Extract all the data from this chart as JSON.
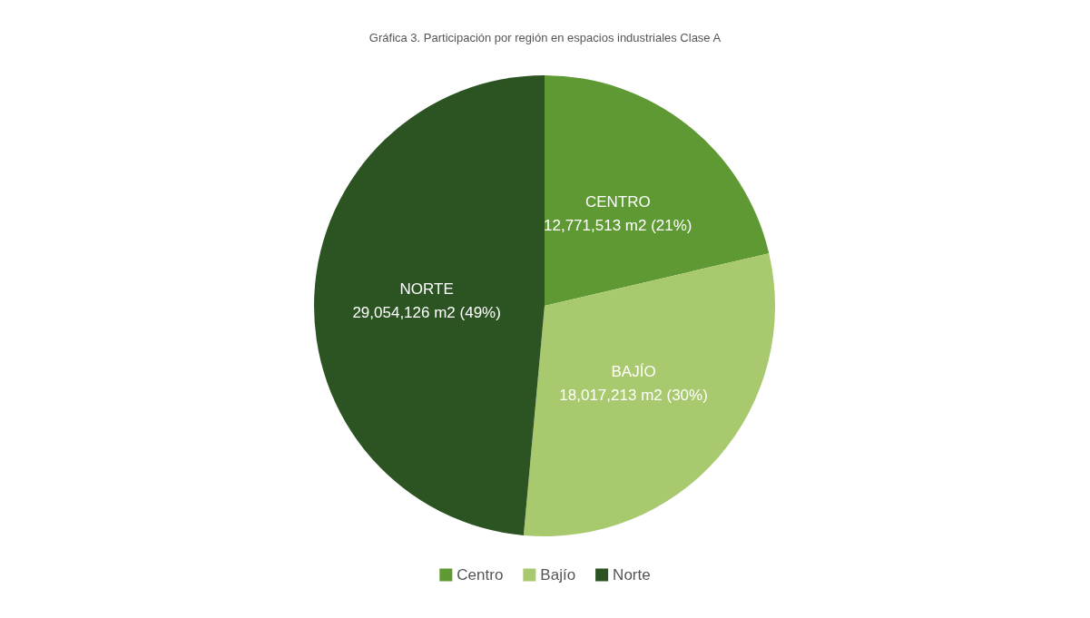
{
  "chart_data": {
    "type": "pie",
    "title": "Gráfica 3. Participación por región en espacios industriales Clase A",
    "categories": [
      "Centro",
      "Bajío",
      "Norte"
    ],
    "values": [
      12771513,
      18017213,
      29054126
    ],
    "colors": [
      "#5e9933",
      "#a9c96f",
      "#2c5322"
    ],
    "value_labels": [
      "CENTRO\n12,771,513 m2 (21%)",
      "BAJÍO\n18,017,213 m2 (30%)",
      "NORTE\n29,054,126 m2 (49%)"
    ],
    "legend": "bottom"
  }
}
